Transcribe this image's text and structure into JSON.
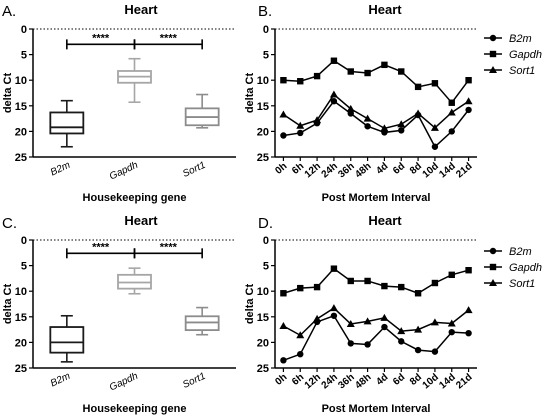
{
  "chart_data": [
    {
      "panel_label": "A.",
      "type": "boxplot",
      "title": "Heart",
      "xlabel": "Housekeeping gene",
      "ylabel": "delta Ct",
      "ylim": [
        0,
        25
      ],
      "y_reversed": true,
      "yticks": [
        0,
        5,
        10,
        15,
        20,
        25
      ],
      "categories": [
        "B2m",
        "Gapdh",
        "Sort1"
      ],
      "boxes": [
        {
          "name": "B2m",
          "min": 14.0,
          "q1": 16.3,
          "median": 19.2,
          "q3": 20.4,
          "max": 23.0,
          "color": "#1a1a1a"
        },
        {
          "name": "Gapdh",
          "min": 5.8,
          "q1": 8.2,
          "median": 9.3,
          "q3": 10.5,
          "max": 14.3,
          "color": "#a6a6a6"
        },
        {
          "name": "Sort1",
          "min": 12.8,
          "q1": 15.5,
          "median": 17.2,
          "q3": 18.8,
          "max": 19.3,
          "color": "#8c8c8c"
        }
      ],
      "significance": [
        {
          "from": "B2m",
          "to": "Gapdh",
          "label": "****",
          "y": 3.0
        },
        {
          "from": "Gapdh",
          "to": "Sort1",
          "label": "****",
          "y": 3.0
        }
      ]
    },
    {
      "panel_label": "B.",
      "type": "line",
      "title": "Heart",
      "xlabel": "Post Mortem Interval",
      "ylabel": "delta Ct",
      "ylim": [
        0,
        25
      ],
      "y_reversed": true,
      "yticks": [
        0,
        5,
        10,
        15,
        20,
        25
      ],
      "categories": [
        "0h",
        "6h",
        "12h",
        "24h",
        "36h",
        "48h",
        "4d",
        "6d",
        "8d",
        "10d",
        "14d",
        "21d"
      ],
      "legend_position": "top-right",
      "series": [
        {
          "name": "B2m",
          "marker": "circle",
          "values": [
            20.8,
            20.3,
            18.4,
            14.1,
            16.5,
            19.0,
            20.2,
            19.8,
            16.8,
            23.0,
            20.0,
            15.8
          ]
        },
        {
          "name": "Gapdh",
          "marker": "square",
          "values": [
            10.0,
            10.2,
            9.2,
            6.2,
            8.3,
            8.6,
            7.0,
            8.3,
            11.3,
            10.6,
            14.4,
            10.0
          ]
        },
        {
          "name": "Sort1",
          "marker": "triangle",
          "values": [
            16.7,
            18.9,
            17.8,
            12.8,
            15.6,
            17.5,
            19.4,
            18.6,
            16.5,
            19.3,
            16.3,
            14.1
          ]
        }
      ]
    },
    {
      "panel_label": "C.",
      "type": "boxplot",
      "title": "Heart",
      "xlabel": "Housekeeping gene",
      "ylabel": "delta Ct",
      "ylim": [
        0,
        25
      ],
      "y_reversed": true,
      "yticks": [
        0,
        5,
        10,
        15,
        20,
        25
      ],
      "categories": [
        "B2m",
        "Gapdh",
        "Sort1"
      ],
      "boxes": [
        {
          "name": "B2m",
          "min": 14.8,
          "q1": 17.0,
          "median": 20.0,
          "q3": 22.0,
          "max": 23.8,
          "color": "#1a1a1a"
        },
        {
          "name": "Gapdh",
          "min": 5.5,
          "q1": 6.8,
          "median": 8.3,
          "q3": 9.5,
          "max": 10.5,
          "color": "#a6a6a6"
        },
        {
          "name": "Sort1",
          "min": 13.2,
          "q1": 14.9,
          "median": 16.1,
          "q3": 17.6,
          "max": 18.5,
          "color": "#8c8c8c"
        }
      ],
      "significance": [
        {
          "from": "B2m",
          "to": "Gapdh",
          "label": "****",
          "y": 2.6
        },
        {
          "from": "Gapdh",
          "to": "Sort1",
          "label": "****",
          "y": 2.6
        }
      ]
    },
    {
      "panel_label": "D.",
      "type": "line",
      "title": "Heart",
      "xlabel": "Post Mortem Interval",
      "ylabel": "delta Ct",
      "ylim": [
        0,
        25
      ],
      "y_reversed": true,
      "yticks": [
        0,
        5,
        10,
        15,
        20,
        25
      ],
      "categories": [
        "0h",
        "6h",
        "12h",
        "24h",
        "36h",
        "48h",
        "4d",
        "6d",
        "8d",
        "10d",
        "14d",
        "21d"
      ],
      "legend_position": "top-right",
      "series": [
        {
          "name": "B2m",
          "marker": "circle",
          "values": [
            23.5,
            22.3,
            16.0,
            14.8,
            20.2,
            20.4,
            17.0,
            19.8,
            21.5,
            21.8,
            18.0,
            18.2
          ]
        },
        {
          "name": "Gapdh",
          "marker": "square",
          "values": [
            10.4,
            9.4,
            9.2,
            5.6,
            8.0,
            8.0,
            9.0,
            9.2,
            10.4,
            8.4,
            6.8,
            5.9
          ]
        },
        {
          "name": "Sort1",
          "marker": "triangle",
          "values": [
            16.8,
            18.6,
            15.4,
            13.3,
            16.4,
            15.9,
            15.2,
            17.8,
            17.5,
            16.1,
            16.3,
            13.7
          ]
        }
      ]
    }
  ]
}
